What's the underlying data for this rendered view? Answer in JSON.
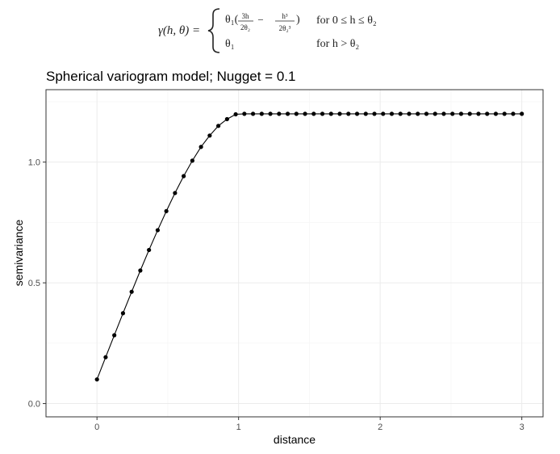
{
  "formula": {
    "lhs": "γ(h, θ) =",
    "case1_expr_prefix": "θ₁(",
    "case1_frac1_num": "3h",
    "case1_frac1_den": "2θ₂",
    "case1_minus": "−",
    "case1_frac2_num": "h³",
    "case1_frac2_den": "2θ₂³",
    "case1_expr_suffix": ")",
    "case1_condition": "for 0 ≤ h ≤ θ₂",
    "case2_expr": "θ₁",
    "case2_condition": "for h > θ₂"
  },
  "chart_data": {
    "type": "line",
    "title": "Spherical variogram model; Nugget = 0.1",
    "xlabel": "distance",
    "ylabel": "semivariance",
    "xlim": [
      -0.36,
      3.15
    ],
    "ylim": [
      -0.055,
      1.3
    ],
    "x_ticks": [
      0,
      1,
      2,
      3
    ],
    "x_tick_labels": [
      "0",
      "1",
      "2",
      "3"
    ],
    "y_ticks": [
      0.0,
      0.5,
      1.0
    ],
    "y_tick_labels": [
      "0.0",
      "0.5",
      "1.0"
    ],
    "grid": true,
    "legend": "none",
    "series": [
      {
        "color": "#000000",
        "marker": "point",
        "x": [
          0,
          0.0612,
          0.1224,
          0.1837,
          0.2449,
          0.3061,
          0.3673,
          0.4286,
          0.4898,
          0.551,
          0.6122,
          0.6735,
          0.7347,
          0.7959,
          0.8571,
          0.9184,
          0.9796,
          1.0408,
          1.102,
          1.1633,
          1.2245,
          1.2857,
          1.3469,
          1.4082,
          1.4694,
          1.5306,
          1.5918,
          1.6531,
          1.7143,
          1.7755,
          1.8367,
          1.898,
          1.9592,
          2.0204,
          2.0816,
          2.1429,
          2.2041,
          2.2653,
          2.3265,
          2.3878,
          2.449,
          2.5102,
          2.5714,
          2.6327,
          2.6939,
          2.7551,
          2.8163,
          2.8776,
          2.9388,
          3.0
        ],
        "y": [
          0.1,
          0.192,
          0.283,
          0.374,
          0.463,
          0.551,
          0.636,
          0.718,
          0.797,
          0.872,
          0.942,
          1.006,
          1.063,
          1.11,
          1.15,
          1.178,
          1.198,
          1.2,
          1.2,
          1.2,
          1.2,
          1.2,
          1.2,
          1.2,
          1.2,
          1.2,
          1.2,
          1.2,
          1.2,
          1.2,
          1.2,
          1.2,
          1.2,
          1.2,
          1.2,
          1.2,
          1.2,
          1.2,
          1.2,
          1.2,
          1.2,
          1.2,
          1.2,
          1.2,
          1.2,
          1.2,
          1.2,
          1.2,
          1.2,
          1.2
        ]
      }
    ]
  }
}
